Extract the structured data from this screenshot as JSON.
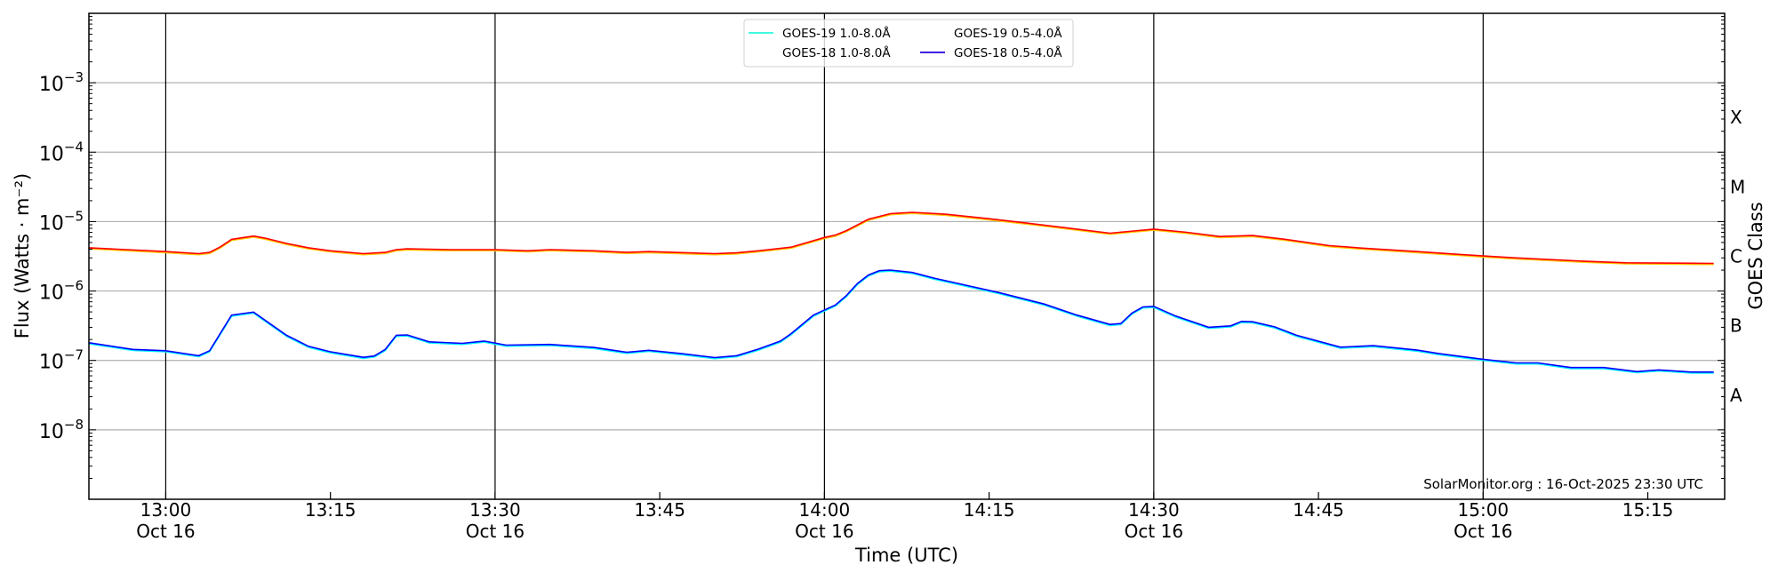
{
  "chart_data": {
    "type": "line",
    "xlabel": "Time (UTC)",
    "ylabel": "Flux (Watts · m⁻²)",
    "ylabel_right": "GOES Class",
    "yscale": "log",
    "ylim": [
      1e-09,
      0.01
    ],
    "xlim": [
      "12:53",
      "15:22"
    ],
    "grid": "horizontal at decades; vertical black lines at half-hours",
    "yticks": [
      {
        "exp": "-3",
        "value": 0.001
      },
      {
        "exp": "-4",
        "value": 0.0001
      },
      {
        "exp": "-5",
        "value": 1e-05
      },
      {
        "exp": "-6",
        "value": 1e-06
      },
      {
        "exp": "-7",
        "value": 1e-07
      },
      {
        "exp": "-8",
        "value": 1e-08
      }
    ],
    "ytick_base": "10",
    "goes_classes": [
      {
        "label": "X",
        "value": 0.000316
      },
      {
        "label": "M",
        "value": 3.16e-05
      },
      {
        "label": "C",
        "value": 3.16e-06
      },
      {
        "label": "B",
        "value": 3.16e-07
      },
      {
        "label": "A",
        "value": 3.16e-08
      }
    ],
    "xticks": [
      {
        "t": "13:00",
        "date": "Oct 16"
      },
      {
        "t": "13:15",
        "date": ""
      },
      {
        "t": "13:30",
        "date": "Oct 16"
      },
      {
        "t": "13:45",
        "date": ""
      },
      {
        "t": "14:00",
        "date": "Oct 16"
      },
      {
        "t": "14:15",
        "date": ""
      },
      {
        "t": "14:30",
        "date": "Oct 16"
      },
      {
        "t": "14:45",
        "date": ""
      },
      {
        "t": "15:00",
        "date": "Oct 16"
      },
      {
        "t": "15:15",
        "date": ""
      }
    ],
    "legend_placement": "top-center",
    "annotation": "SolarMonitor.org : 16-Oct-2025 23:30 UTC",
    "series": [
      {
        "name": "GOES-19 1.0-8.0Å",
        "color": "#ffc800",
        "ref": "red"
      },
      {
        "name": "GOES-18 1.0-8.0Å",
        "color": "#ff0000",
        "key": "red",
        "x": [
          "12:53",
          "13:00",
          "13:03",
          "13:04",
          "13:05",
          "13:06",
          "13:08",
          "13:09",
          "13:11",
          "13:13",
          "13:15",
          "13:18",
          "13:20",
          "13:21",
          "13:22",
          "13:26",
          "13:30",
          "13:33",
          "13:35",
          "13:39",
          "13:42",
          "13:44",
          "13:50",
          "13:52",
          "13:54",
          "13:57",
          "14:00",
          "14:01",
          "14:02",
          "14:04",
          "14:06",
          "14:08",
          "14:11",
          "14:15",
          "14:19",
          "14:23",
          "14:26",
          "14:30",
          "14:33",
          "14:36",
          "14:39",
          "14:42",
          "14:46",
          "14:49",
          "14:54",
          "15:00",
          "15:03",
          "15:09",
          "15:13",
          "15:21"
        ],
        "y": [
          4.19e-06,
          3.7e-06,
          3.45e-06,
          3.6e-06,
          4.35e-06,
          5.55e-06,
          6.2e-06,
          5.8e-06,
          4.85e-06,
          4.2e-06,
          3.8e-06,
          3.45e-06,
          3.6e-06,
          3.95e-06,
          4.05e-06,
          3.95e-06,
          3.95e-06,
          3.8e-06,
          3.95e-06,
          3.8e-06,
          3.6e-06,
          3.7e-06,
          3.45e-06,
          3.55e-06,
          3.8e-06,
          4.3e-06,
          5.9e-06,
          6.4e-06,
          7.4e-06,
          1.08e-05,
          1.3e-05,
          1.36e-05,
          1.28e-05,
          1.1e-05,
          9.3e-06,
          7.8e-06,
          6.8e-06,
          7.8e-06,
          7e-06,
          6.1e-06,
          6.3e-06,
          5.55e-06,
          4.5e-06,
          4.15e-06,
          3.7e-06,
          3.2e-06,
          3e-06,
          2.7e-06,
          2.55e-06,
          2.5e-06
        ]
      },
      {
        "name": "GOES-19 0.5-4.0Å",
        "color": "#00ffff",
        "ref": "blue"
      },
      {
        "name": "GOES-18 0.5-4.0Å",
        "color": "#0000ff",
        "key": "blue",
        "x": [
          "12:53",
          "12:57",
          "13:00",
          "13:03",
          "13:04",
          "13:06",
          "13:08",
          "13:11",
          "13:13",
          "13:15",
          "13:18",
          "13:19",
          "13:20",
          "13:21",
          "13:22",
          "13:24",
          "13:27",
          "13:29",
          "13:31",
          "13:35",
          "13:39",
          "13:42",
          "13:44",
          "13:47",
          "13:50",
          "13:52",
          "13:54",
          "13:56",
          "13:57",
          "13:59",
          "14:01",
          "14:02",
          "14:03",
          "14:04",
          "14:05",
          "14:06",
          "14:08",
          "14:10",
          "14:13",
          "14:16",
          "14:20",
          "14:23",
          "14:26",
          "14:27",
          "14:28",
          "14:29",
          "14:30",
          "14:32",
          "14:35",
          "14:37",
          "14:38",
          "14:39",
          "14:41",
          "14:43",
          "14:47",
          "14:50",
          "14:54",
          "14:56",
          "15:00",
          "15:03",
          "15:05",
          "15:08",
          "15:11",
          "15:14",
          "15:16",
          "15:19",
          "15:21"
        ],
        "y": [
          1.8e-07,
          1.44e-07,
          1.38e-07,
          1.17e-07,
          1.38e-07,
          4.5e-07,
          4.97e-07,
          2.3e-07,
          1.6e-07,
          1.33e-07,
          1.11e-07,
          1.16e-07,
          1.44e-07,
          2.3e-07,
          2.33e-07,
          1.85e-07,
          1.76e-07,
          1.9e-07,
          1.66e-07,
          1.7e-07,
          1.54e-07,
          1.31e-07,
          1.4e-07,
          1.25e-07,
          1.1e-07,
          1.17e-07,
          1.46e-07,
          1.9e-07,
          2.45e-07,
          4.5e-07,
          6.3e-07,
          8.6e-07,
          1.28e-06,
          1.7e-06,
          1.96e-06,
          2e-06,
          1.85e-06,
          1.53e-06,
          1.2e-06,
          9.4e-07,
          6.5e-07,
          4.5e-07,
          3.3e-07,
          3.4e-07,
          4.8e-07,
          5.9e-07,
          6e-07,
          4.35e-07,
          3e-07,
          3.15e-07,
          3.65e-07,
          3.6e-07,
          3.05e-07,
          2.3e-07,
          1.55e-07,
          1.63e-07,
          1.41e-07,
          1.25e-07,
          1.04e-07,
          9.2e-08,
          9.2e-08,
          7.9e-08,
          7.9e-08,
          6.9e-08,
          7.3e-08,
          6.8e-08,
          6.8e-08
        ]
      }
    ]
  }
}
